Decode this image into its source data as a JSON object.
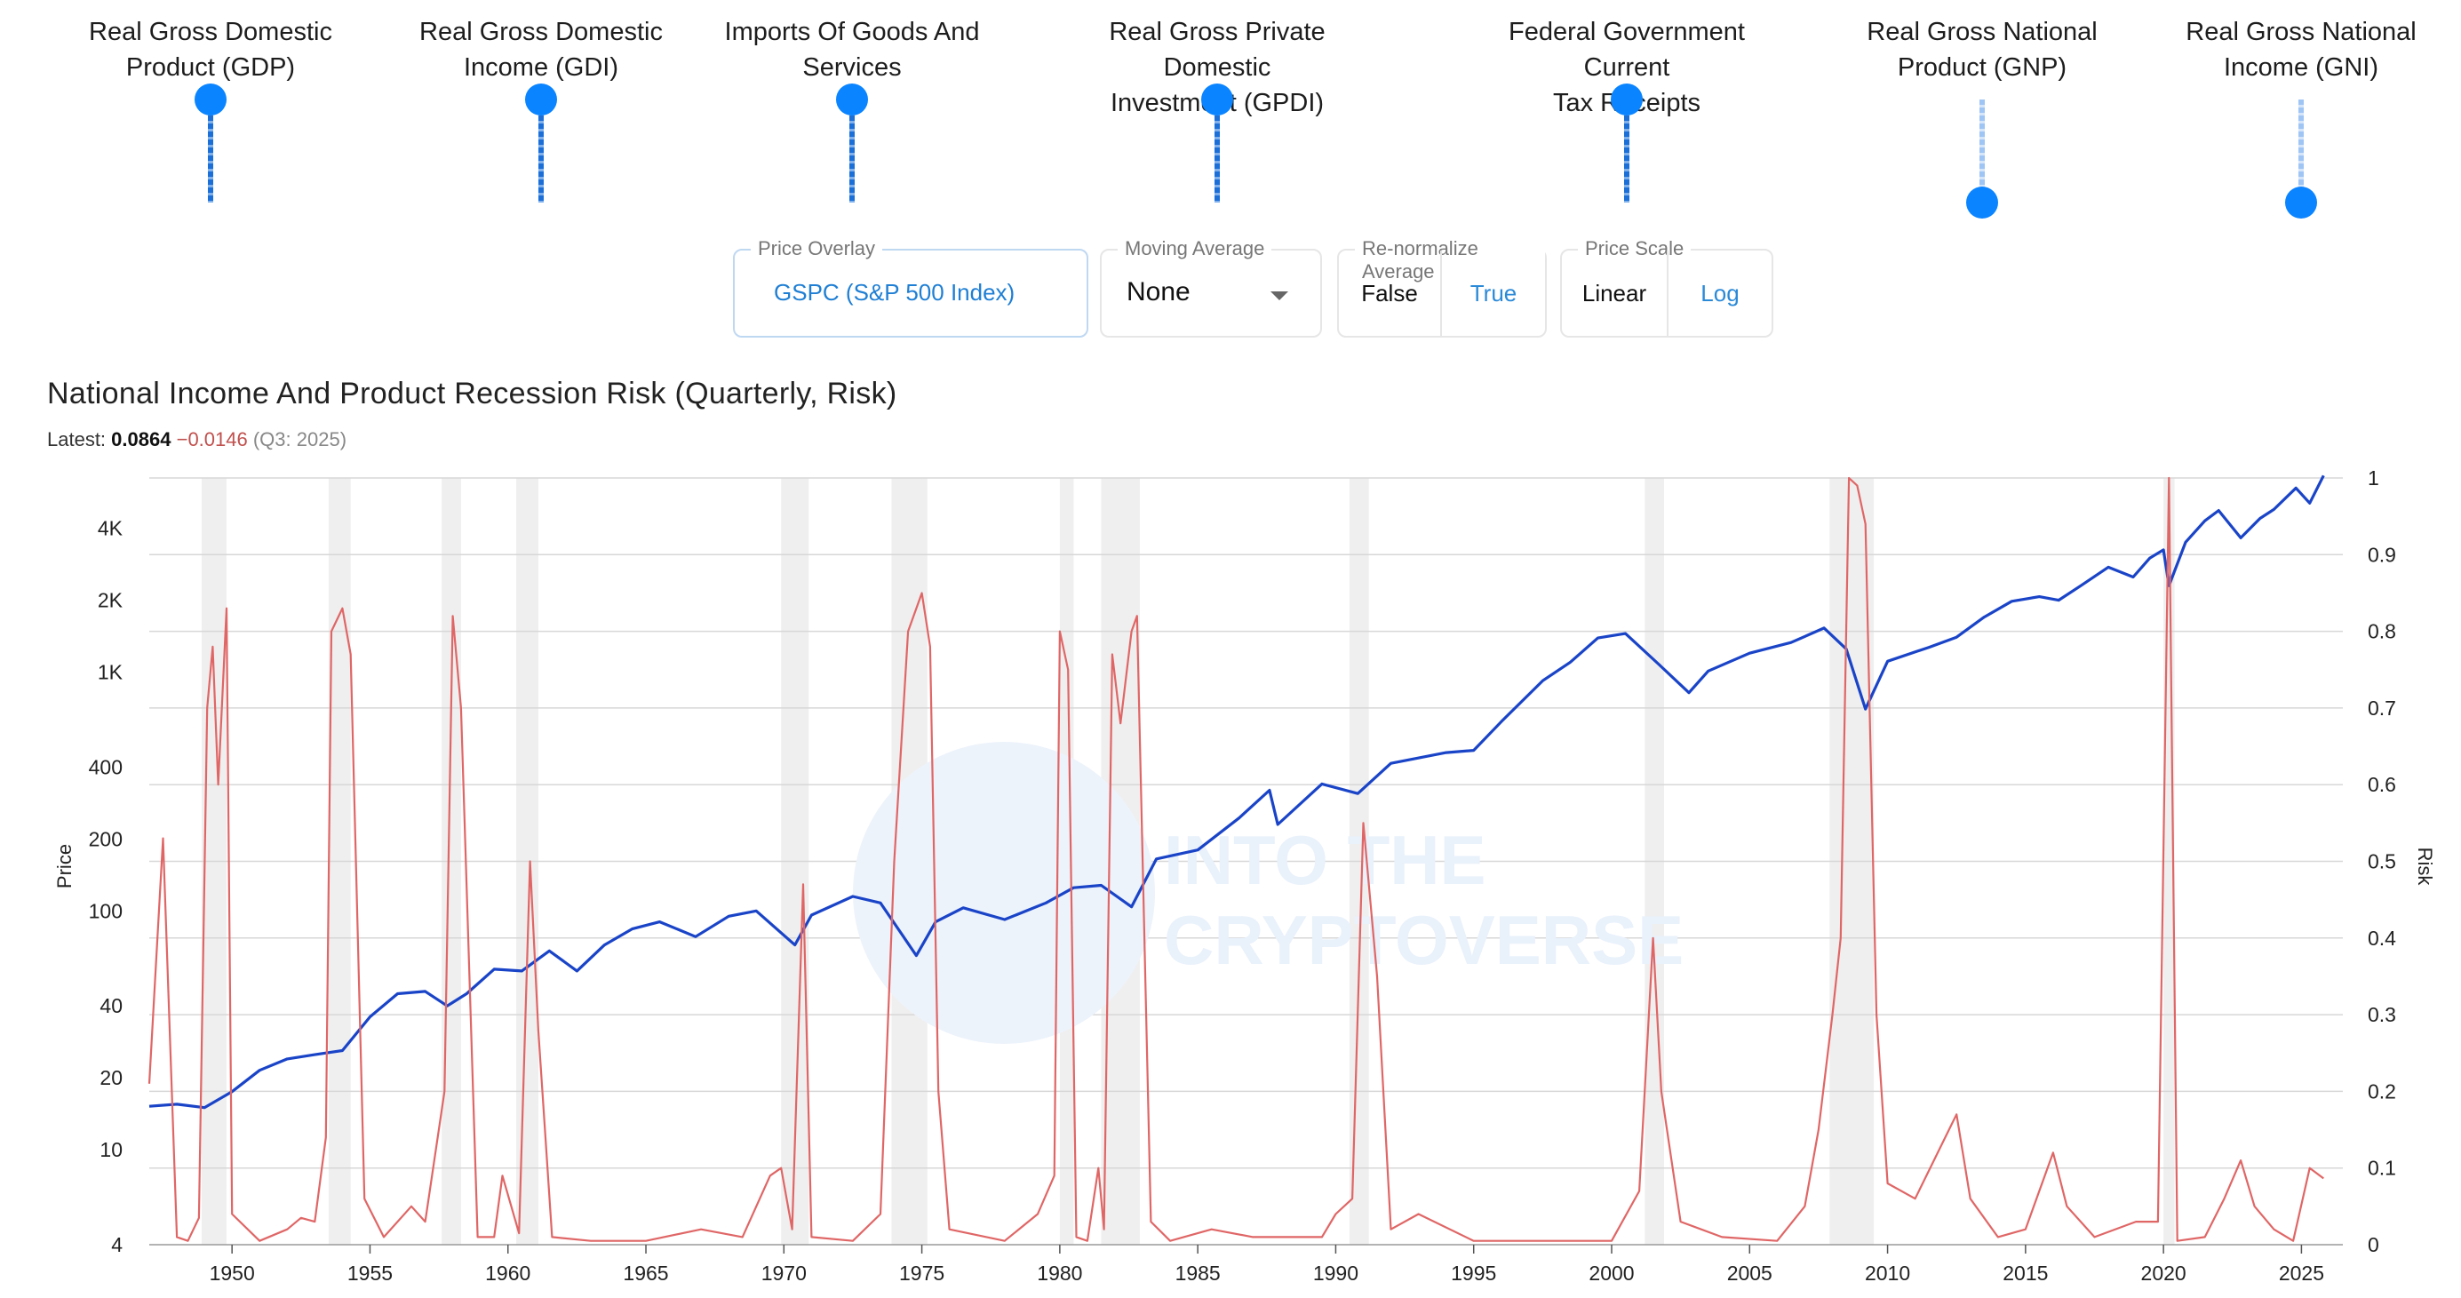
{
  "toggles": [
    {
      "label": "Real Gross Domestic\nProduct (GDP)",
      "on": true
    },
    {
      "label": "Real Gross Domestic\nIncome (GDI)",
      "on": true
    },
    {
      "label": "Imports Of Goods And\nServices",
      "on": true
    },
    {
      "label": "Real Gross Private Domestic\nInvestment (GPDI)",
      "on": true
    },
    {
      "label": "Federal Government Current\nTax Receipts",
      "on": true
    },
    {
      "label": "Real Gross National\nProduct (GNP)",
      "on": false
    },
    {
      "label": "Real Gross National\nIncome (GNI)",
      "on": false
    }
  ],
  "controls": {
    "price_overlay": {
      "legend": "Price Overlay",
      "value": "GSPC (S&P 500 Index)"
    },
    "moving_average": {
      "legend": "Moving Average",
      "value": "None"
    },
    "renormalize": {
      "legend": "Re-normalize Average",
      "options": [
        "False",
        "True"
      ],
      "selected": "False"
    },
    "price_scale": {
      "legend": "Price Scale",
      "options": [
        "Linear",
        "Log"
      ],
      "selected": "Linear"
    }
  },
  "header": {
    "title": "National Income And Product Recession Risk (Quarterly, Risk)",
    "latest_label": "Latest:",
    "latest_value": "0.0864",
    "latest_change": "−0.0146",
    "latest_period": "(Q3: 2025)"
  },
  "watermark": {
    "line1": "INTO THE",
    "line2": "CRYPTOVERSE"
  },
  "colors": {
    "price_line": "#1a44c8",
    "risk_line": "#e06666",
    "recession_band": "#efefef",
    "toggle_knob": "#0a84ff",
    "accent_text": "#2b8ad8"
  },
  "chart_data": {
    "type": "line",
    "title": "National Income And Product Recession Risk (Quarterly, Risk)",
    "x_range": [
      1947,
      2026.5
    ],
    "x_ticks": [
      1950,
      1955,
      1960,
      1965,
      1970,
      1975,
      1980,
      1985,
      1990,
      1995,
      2000,
      2005,
      2010,
      2015,
      2020,
      2025
    ],
    "left_axis": {
      "label": "Price",
      "scale": "log",
      "range": [
        4,
        6500
      ],
      "ticks": [
        4,
        10,
        20,
        40,
        100,
        200,
        400,
        1000,
        2000,
        4000
      ],
      "tick_labels": [
        "4",
        "10",
        "20",
        "40",
        "100",
        "200",
        "400",
        "1K",
        "2K",
        "4K"
      ]
    },
    "right_axis": {
      "label": "Risk",
      "range": [
        0,
        1
      ],
      "ticks": [
        0,
        0.1,
        0.2,
        0.3,
        0.4,
        0.5,
        0.6,
        0.7,
        0.8,
        0.9,
        1
      ],
      "tick_labels": [
        "0",
        "0.1",
        "0.2",
        "0.3",
        "0.4",
        "0.5",
        "0.6",
        "0.7",
        "0.8",
        "0.9",
        "1"
      ]
    },
    "grid": true,
    "recessions": [
      [
        1948.9,
        1949.8
      ],
      [
        1953.5,
        1954.3
      ],
      [
        1957.6,
        1958.3
      ],
      [
        1960.3,
        1961.1
      ],
      [
        1969.9,
        1970.9
      ],
      [
        1973.9,
        1975.2
      ],
      [
        1980.0,
        1980.5
      ],
      [
        1981.5,
        1982.9
      ],
      [
        1990.5,
        1991.2
      ],
      [
        2001.2,
        2001.9
      ],
      [
        2007.9,
        2009.5
      ],
      [
        2020.0,
        2020.4
      ]
    ],
    "series": [
      {
        "name": "GSPC (S&P 500 Index)",
        "axis": "left",
        "color": "#1a44c8",
        "points": [
          [
            1947.0,
            15.2
          ],
          [
            1948.0,
            15.5
          ],
          [
            1949.0,
            15.0
          ],
          [
            1950.0,
            17.5
          ],
          [
            1951.0,
            21.5
          ],
          [
            1952.0,
            24
          ],
          [
            1953.0,
            25
          ],
          [
            1954.0,
            26
          ],
          [
            1955.0,
            36
          ],
          [
            1956.0,
            45
          ],
          [
            1957.0,
            46
          ],
          [
            1957.8,
            40
          ],
          [
            1958.5,
            45
          ],
          [
            1959.5,
            57
          ],
          [
            1960.5,
            56
          ],
          [
            1961.5,
            68
          ],
          [
            1962.5,
            56
          ],
          [
            1963.5,
            72
          ],
          [
            1964.5,
            84
          ],
          [
            1965.5,
            90
          ],
          [
            1966.8,
            78
          ],
          [
            1968.0,
            95
          ],
          [
            1969.0,
            100
          ],
          [
            1970.4,
            72
          ],
          [
            1971.0,
            96
          ],
          [
            1972.5,
            115
          ],
          [
            1973.5,
            108
          ],
          [
            1974.8,
            65
          ],
          [
            1975.5,
            90
          ],
          [
            1976.5,
            103
          ],
          [
            1978.0,
            92
          ],
          [
            1979.5,
            108
          ],
          [
            1980.5,
            125
          ],
          [
            1981.5,
            128
          ],
          [
            1982.6,
            104
          ],
          [
            1983.5,
            165
          ],
          [
            1985.0,
            180
          ],
          [
            1986.5,
            245
          ],
          [
            1987.6,
            320
          ],
          [
            1987.9,
            230
          ],
          [
            1989.5,
            340
          ],
          [
            1990.8,
            310
          ],
          [
            1992.0,
            415
          ],
          [
            1994.0,
            460
          ],
          [
            1995.0,
            470
          ],
          [
            1996.0,
            620
          ],
          [
            1997.5,
            920
          ],
          [
            1998.5,
            1100
          ],
          [
            1999.5,
            1390
          ],
          [
            2000.5,
            1450
          ],
          [
            2001.7,
            1080
          ],
          [
            2002.8,
            820
          ],
          [
            2003.5,
            1010
          ],
          [
            2005.0,
            1200
          ],
          [
            2006.5,
            1330
          ],
          [
            2007.7,
            1530
          ],
          [
            2008.5,
            1250
          ],
          [
            2009.2,
            700
          ],
          [
            2010.0,
            1110
          ],
          [
            2011.5,
            1270
          ],
          [
            2012.5,
            1400
          ],
          [
            2013.5,
            1700
          ],
          [
            2014.5,
            1980
          ],
          [
            2015.5,
            2070
          ],
          [
            2016.2,
            2000
          ],
          [
            2017.0,
            2300
          ],
          [
            2018.0,
            2750
          ],
          [
            2018.9,
            2500
          ],
          [
            2019.5,
            3000
          ],
          [
            2020.0,
            3250
          ],
          [
            2020.2,
            2300
          ],
          [
            2020.8,
            3500
          ],
          [
            2021.5,
            4300
          ],
          [
            2022.0,
            4750
          ],
          [
            2022.8,
            3650
          ],
          [
            2023.5,
            4400
          ],
          [
            2024.0,
            4800
          ],
          [
            2024.8,
            5900
          ],
          [
            2025.3,
            5100
          ],
          [
            2025.8,
            6650
          ]
        ]
      },
      {
        "name": "Risk",
        "axis": "right",
        "color": "#e06666",
        "points": [
          [
            1947.0,
            0.21
          ],
          [
            1947.5,
            0.53
          ],
          [
            1948.0,
            0.01
          ],
          [
            1948.4,
            0.005
          ],
          [
            1948.8,
            0.035
          ],
          [
            1949.1,
            0.7
          ],
          [
            1949.3,
            0.78
          ],
          [
            1949.5,
            0.6
          ],
          [
            1949.8,
            0.83
          ],
          [
            1950.0,
            0.04
          ],
          [
            1951.0,
            0.005
          ],
          [
            1952.0,
            0.02
          ],
          [
            1952.5,
            0.035
          ],
          [
            1953.0,
            0.03
          ],
          [
            1953.4,
            0.14
          ],
          [
            1953.6,
            0.8
          ],
          [
            1954.0,
            0.83
          ],
          [
            1954.3,
            0.77
          ],
          [
            1954.8,
            0.06
          ],
          [
            1955.5,
            0.01
          ],
          [
            1956.5,
            0.05
          ],
          [
            1957.0,
            0.03
          ],
          [
            1957.7,
            0.2
          ],
          [
            1958.0,
            0.82
          ],
          [
            1958.3,
            0.7
          ],
          [
            1958.9,
            0.01
          ],
          [
            1959.5,
            0.01
          ],
          [
            1959.8,
            0.09
          ],
          [
            1960.4,
            0.015
          ],
          [
            1960.8,
            0.5
          ],
          [
            1961.1,
            0.28
          ],
          [
            1961.6,
            0.01
          ],
          [
            1963.0,
            0.005
          ],
          [
            1965.0,
            0.005
          ],
          [
            1967.0,
            0.02
          ],
          [
            1968.5,
            0.01
          ],
          [
            1969.5,
            0.09
          ],
          [
            1969.9,
            0.1
          ],
          [
            1970.3,
            0.02
          ],
          [
            1970.7,
            0.47
          ],
          [
            1971.0,
            0.01
          ],
          [
            1972.5,
            0.005
          ],
          [
            1973.5,
            0.04
          ],
          [
            1974.0,
            0.5
          ],
          [
            1974.5,
            0.8
          ],
          [
            1975.0,
            0.85
          ],
          [
            1975.3,
            0.78
          ],
          [
            1975.6,
            0.2
          ],
          [
            1976.0,
            0.02
          ],
          [
            1978.0,
            0.005
          ],
          [
            1979.2,
            0.04
          ],
          [
            1979.8,
            0.09
          ],
          [
            1980.0,
            0.8
          ],
          [
            1980.3,
            0.75
          ],
          [
            1980.6,
            0.01
          ],
          [
            1981.0,
            0.005
          ],
          [
            1981.4,
            0.1
          ],
          [
            1981.6,
            0.02
          ],
          [
            1981.9,
            0.77
          ],
          [
            1982.2,
            0.68
          ],
          [
            1982.6,
            0.8
          ],
          [
            1982.8,
            0.82
          ],
          [
            1983.3,
            0.03
          ],
          [
            1984.0,
            0.005
          ],
          [
            1985.5,
            0.02
          ],
          [
            1987.0,
            0.01
          ],
          [
            1989.5,
            0.01
          ],
          [
            1990.0,
            0.04
          ],
          [
            1990.6,
            0.06
          ],
          [
            1991.0,
            0.55
          ],
          [
            1991.5,
            0.35
          ],
          [
            1992.0,
            0.02
          ],
          [
            1993.0,
            0.04
          ],
          [
            1995.0,
            0.005
          ],
          [
            1998.0,
            0.005
          ],
          [
            2000.0,
            0.005
          ],
          [
            2001.0,
            0.07
          ],
          [
            2001.5,
            0.4
          ],
          [
            2001.8,
            0.2
          ],
          [
            2002.5,
            0.03
          ],
          [
            2004.0,
            0.01
          ],
          [
            2006.0,
            0.005
          ],
          [
            2007.0,
            0.05
          ],
          [
            2007.5,
            0.15
          ],
          [
            2008.0,
            0.3
          ],
          [
            2008.3,
            0.4
          ],
          [
            2008.6,
            1.0
          ],
          [
            2008.9,
            0.99
          ],
          [
            2009.2,
            0.94
          ],
          [
            2009.6,
            0.3
          ],
          [
            2010.0,
            0.08
          ],
          [
            2011.0,
            0.06
          ],
          [
            2012.5,
            0.17
          ],
          [
            2013.0,
            0.06
          ],
          [
            2014.0,
            0.01
          ],
          [
            2015.0,
            0.02
          ],
          [
            2016.0,
            0.12
          ],
          [
            2016.5,
            0.05
          ],
          [
            2017.5,
            0.01
          ],
          [
            2019.0,
            0.03
          ],
          [
            2019.8,
            0.03
          ],
          [
            2020.2,
            1.0
          ],
          [
            2020.5,
            0.005
          ],
          [
            2021.5,
            0.01
          ],
          [
            2022.2,
            0.06
          ],
          [
            2022.8,
            0.11
          ],
          [
            2023.3,
            0.05
          ],
          [
            2024.0,
            0.02
          ],
          [
            2024.7,
            0.005
          ],
          [
            2025.3,
            0.1
          ],
          [
            2025.8,
            0.0864
          ]
        ]
      }
    ]
  }
}
